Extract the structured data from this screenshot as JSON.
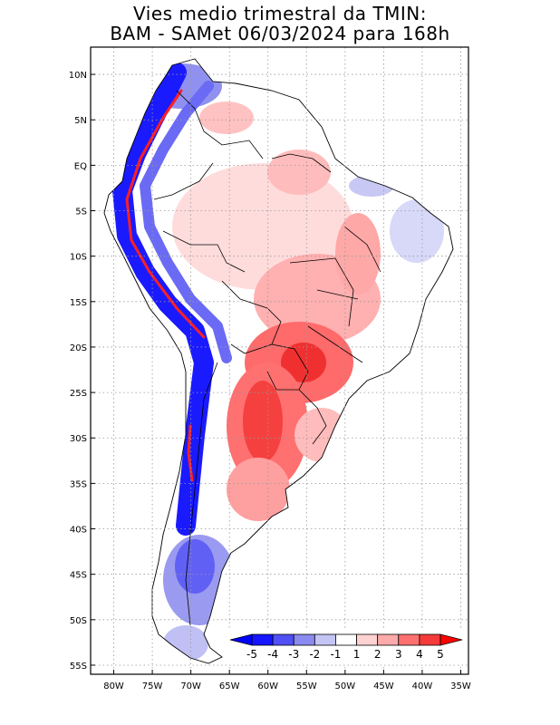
{
  "title": {
    "line1": "Vies medio trimestral da TMIN:",
    "line2": "BAM - SAMet 06/03/2024  para 168h"
  },
  "map": {
    "projection": "lat-lon",
    "lon_range": [
      -83,
      -34
    ],
    "lat_range": [
      -56,
      13
    ],
    "gridlines": "dotted",
    "lat_ticks": [
      {
        "value": 10,
        "label": "10N"
      },
      {
        "value": 5,
        "label": "5N"
      },
      {
        "value": 0,
        "label": "EQ"
      },
      {
        "value": -5,
        "label": "5S"
      },
      {
        "value": -10,
        "label": "10S"
      },
      {
        "value": -15,
        "label": "15S"
      },
      {
        "value": -20,
        "label": "20S"
      },
      {
        "value": -25,
        "label": "25S"
      },
      {
        "value": -30,
        "label": "30S"
      },
      {
        "value": -35,
        "label": "35S"
      },
      {
        "value": -40,
        "label": "40S"
      },
      {
        "value": -45,
        "label": "45S"
      },
      {
        "value": -50,
        "label": "50S"
      },
      {
        "value": -55,
        "label": "55S"
      }
    ],
    "lon_ticks": [
      {
        "value": -80,
        "label": "80W"
      },
      {
        "value": -75,
        "label": "75W"
      },
      {
        "value": -70,
        "label": "70W"
      },
      {
        "value": -65,
        "label": "65W"
      },
      {
        "value": -60,
        "label": "60W"
      },
      {
        "value": -55,
        "label": "55W"
      },
      {
        "value": -50,
        "label": "50W"
      },
      {
        "value": -45,
        "label": "45W"
      },
      {
        "value": -40,
        "label": "40W"
      },
      {
        "value": -35,
        "label": "35W"
      }
    ]
  },
  "colorbar": {
    "labels": [
      "-5",
      "-4",
      "-3",
      "-2",
      "-1",
      "1",
      "2",
      "3",
      "4",
      "5"
    ],
    "colors": [
      "#1515ff",
      "#5050f5",
      "#8a8af0",
      "#c4c4f5",
      "#ffffff",
      "#ffd2d2",
      "#ffaaaa",
      "#ff7070",
      "#f53a3a"
    ],
    "low_arrow_color": "#0000ff",
    "high_arrow_color": "#ff0000"
  }
}
